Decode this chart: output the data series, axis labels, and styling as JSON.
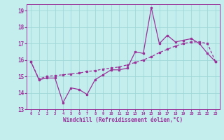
{
  "xlabel": "Windchill (Refroidissement éolien,°C)",
  "xlim": [
    -0.5,
    23.5
  ],
  "ylim": [
    13,
    19.4
  ],
  "yticks": [
    13,
    14,
    15,
    16,
    17,
    18,
    19
  ],
  "xticks": [
    0,
    1,
    2,
    3,
    4,
    5,
    6,
    7,
    8,
    9,
    10,
    11,
    12,
    13,
    14,
    15,
    16,
    17,
    18,
    19,
    20,
    21,
    22,
    23
  ],
  "bg_color": "#c4eeee",
  "grid_color": "#a0d8d8",
  "line_color": "#993399",
  "line1_x": [
    0,
    1,
    2,
    3,
    4,
    5,
    6,
    7,
    8,
    9,
    10,
    11,
    12,
    13,
    14,
    15,
    16,
    17,
    18,
    19,
    20,
    21,
    22,
    23
  ],
  "line1_y": [
    15.9,
    14.8,
    14.9,
    14.9,
    13.4,
    14.3,
    14.2,
    13.9,
    14.8,
    15.1,
    15.4,
    15.4,
    15.5,
    16.5,
    16.4,
    19.2,
    17.0,
    17.5,
    17.1,
    17.2,
    17.3,
    17.0,
    16.4,
    15.9
  ],
  "line2_x": [
    0,
    1,
    2,
    3,
    4,
    5,
    6,
    7,
    8,
    9,
    10,
    11,
    12,
    13,
    14,
    15,
    16,
    17,
    18,
    19,
    20,
    21,
    22,
    23
  ],
  "line2_y": [
    15.9,
    14.85,
    15.0,
    15.05,
    15.1,
    15.15,
    15.2,
    15.3,
    15.35,
    15.45,
    15.5,
    15.58,
    15.7,
    15.85,
    16.0,
    16.2,
    16.45,
    16.65,
    16.85,
    17.0,
    17.1,
    17.1,
    17.0,
    15.9
  ]
}
